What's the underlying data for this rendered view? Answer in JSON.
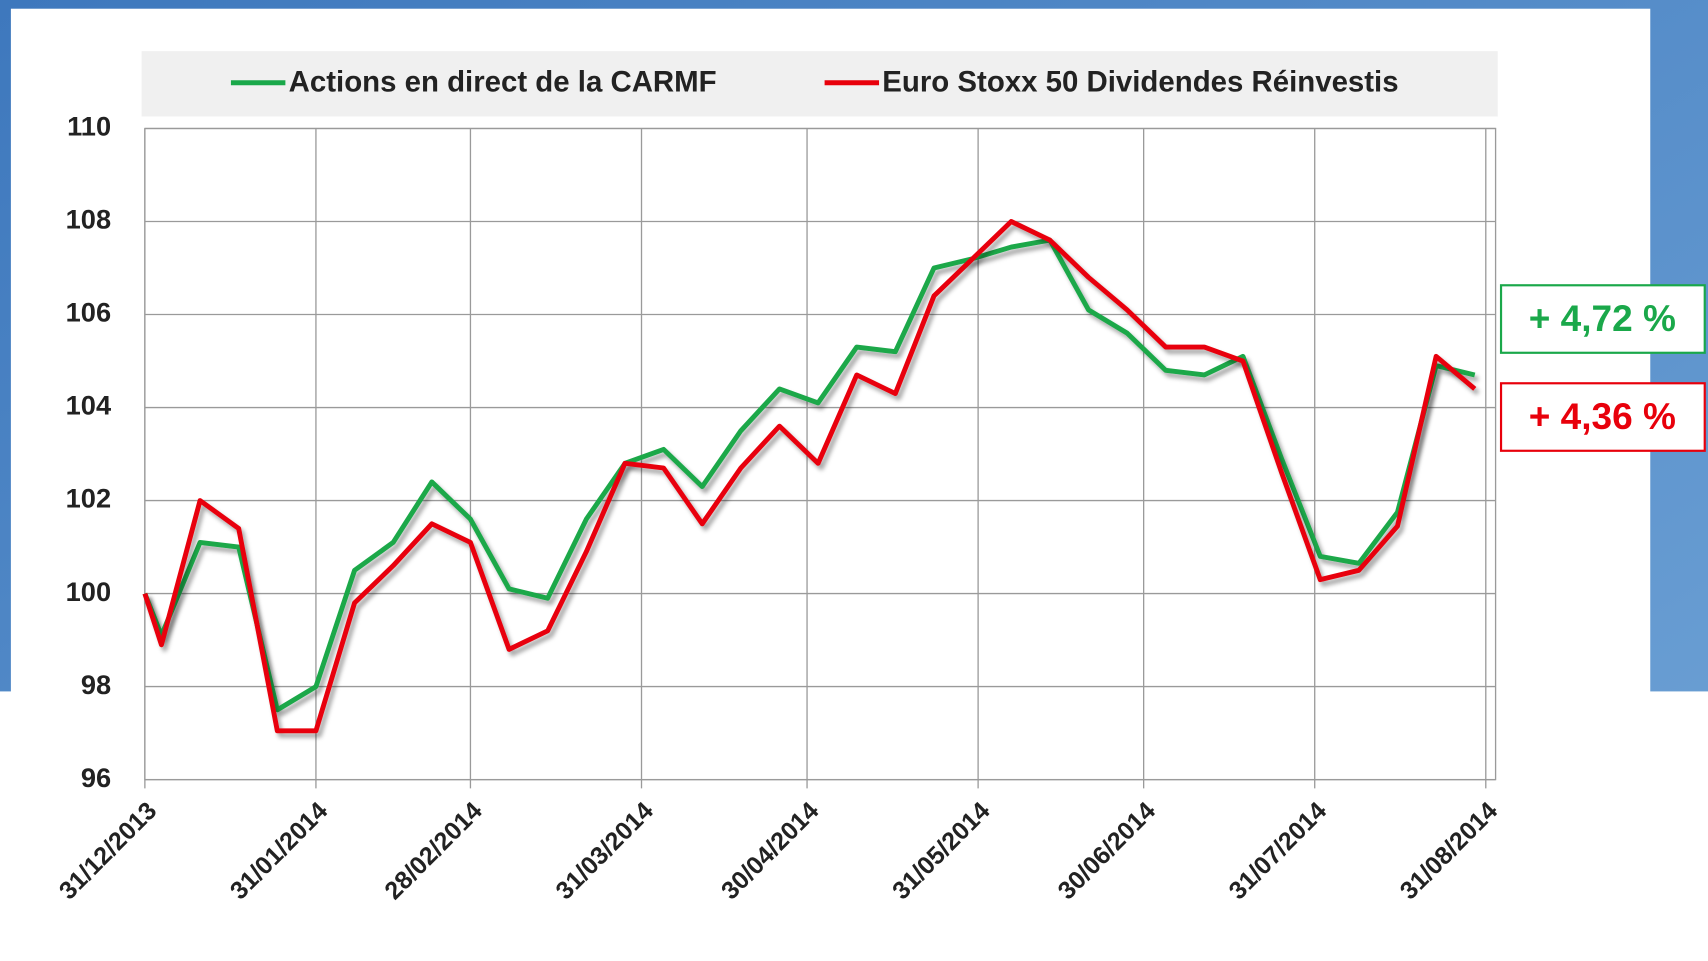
{
  "chart_data": {
    "type": "line",
    "x": [
      "2013-12-31",
      "2014-01-03",
      "2014-01-10",
      "2014-01-17",
      "2014-01-24",
      "2014-01-31",
      "2014-02-07",
      "2014-02-14",
      "2014-02-21",
      "2014-02-28",
      "2014-03-07",
      "2014-03-14",
      "2014-03-21",
      "2014-03-28",
      "2014-04-04",
      "2014-04-11",
      "2014-04-18",
      "2014-04-25",
      "2014-05-02",
      "2014-05-09",
      "2014-05-16",
      "2014-05-23",
      "2014-05-30",
      "2014-06-06",
      "2014-06-13",
      "2014-06-20",
      "2014-06-27",
      "2014-07-04",
      "2014-07-11",
      "2014-07-18",
      "2014-07-25",
      "2014-08-01",
      "2014-08-08",
      "2014-08-15",
      "2014-08-22",
      "2014-08-29"
    ],
    "series": [
      {
        "name": "Actions en direct de la CARMF",
        "color": "#1aa84a",
        "values": [
          100,
          99.1,
          101.1,
          101.0,
          97.5,
          98.0,
          100.5,
          101.1,
          102.4,
          101.6,
          100.1,
          99.9,
          101.6,
          102.8,
          103.1,
          102.3,
          103.5,
          104.4,
          104.1,
          105.3,
          105.2,
          107.0,
          107.2,
          107.45,
          107.6,
          106.1,
          105.6,
          104.8,
          104.7,
          105.1,
          102.9,
          100.8,
          100.65,
          101.75,
          104.9,
          104.7
        ]
      },
      {
        "name": "Euro Stoxx 50 Dividendes Réinvestis",
        "color": "#e8000b",
        "values": [
          100,
          98.9,
          102.0,
          101.4,
          97.05,
          97.05,
          99.8,
          100.6,
          101.5,
          101.1,
          98.8,
          99.2,
          100.9,
          102.8,
          102.7,
          101.5,
          102.7,
          103.6,
          102.8,
          104.7,
          104.3,
          106.4,
          107.2,
          108.0,
          107.6,
          106.8,
          106.1,
          105.3,
          105.3,
          105.0,
          102.6,
          100.3,
          100.5,
          101.45,
          105.1,
          104.4
        ]
      }
    ],
    "xlim": [
      "2013-12-31",
      "2014-08-31"
    ],
    "xticks": [
      {
        "value": "2013-12-31",
        "label": "31/12/2013"
      },
      {
        "value": "2014-01-31",
        "label": "31/01/2014"
      },
      {
        "value": "2014-02-28",
        "label": "28/02/2014"
      },
      {
        "value": "2014-03-31",
        "label": "31/03/2014"
      },
      {
        "value": "2014-04-30",
        "label": "30/04/2014"
      },
      {
        "value": "2014-05-31",
        "label": "31/05/2014"
      },
      {
        "value": "2014-06-30",
        "label": "30/06/2014"
      },
      {
        "value": "2014-07-31",
        "label": "31/07/2014"
      },
      {
        "value": "2014-08-31",
        "label": "31/08/2014"
      }
    ],
    "ylim": [
      96,
      110
    ],
    "yticks": [
      96,
      98,
      100,
      102,
      104,
      106,
      108,
      110
    ],
    "grid": true,
    "legend": "top",
    "annotations": [
      {
        "text": "+ 4,72 %",
        "color": "#1aa84a"
      },
      {
        "text": "+ 4,36 %",
        "color": "#e8000b"
      }
    ]
  }
}
